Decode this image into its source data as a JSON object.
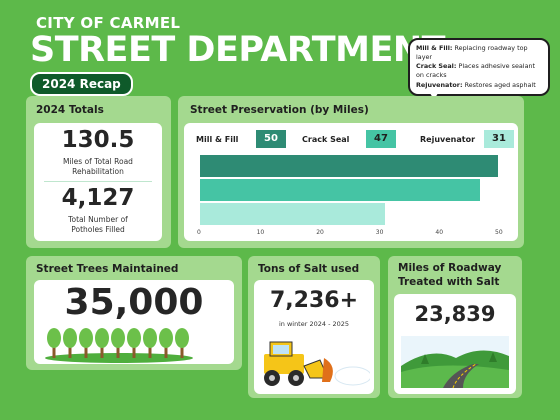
{
  "header": {
    "city": "CITY OF CARMEL",
    "title": "STREET DEPARTMENT",
    "recap": "2024 Recap"
  },
  "legend_bubble": {
    "items": [
      {
        "term": "Mill & Fill:",
        "desc": "Replacing roadway top layer"
      },
      {
        "term": "Crack Seal:",
        "desc": "Places adhesive sealant on cracks"
      },
      {
        "term": "Rejuvenator:",
        "desc": "Restores aged asphalt"
      }
    ]
  },
  "totals": {
    "title": "2024 Totals",
    "miles_value": "130.5",
    "miles_label_1": "Miles of Total Road",
    "miles_label_2": "Rehabilitation",
    "potholes_value": "4,127",
    "potholes_label_1": "Total Number of",
    "potholes_label_2": "Potholes Filled"
  },
  "preservation": {
    "title": "Street Preservation (by Miles)"
  },
  "chart_data": {
    "type": "bar",
    "orientation": "horizontal",
    "title": "Street Preservation (by Miles)",
    "categories": [
      "Mill & Fill",
      "Crack Seal",
      "Rejuvenator"
    ],
    "values": [
      50,
      47,
      31
    ],
    "value_labels": [
      "50",
      "47",
      "31"
    ],
    "colors": [
      "#2e8b74",
      "#45c4a4",
      "#a9eadb"
    ],
    "xlim": [
      0,
      50
    ],
    "xticks": [
      "0",
      "10",
      "20",
      "30",
      "40",
      "50"
    ],
    "grid": false,
    "legend": "top"
  },
  "trees": {
    "title": "Street Trees Maintained",
    "value": "35,000"
  },
  "salt": {
    "title": "Tons of Salt used",
    "value": "7,236+",
    "sub": "in winter 2024 - 2025"
  },
  "roadway": {
    "title_1": "Miles of Roadway",
    "title_2": "Treated with Salt",
    "value": "23,839"
  },
  "icons": [
    "tree-row-illustration",
    "snowplow-illustration",
    "road-landscape-illustration"
  ]
}
